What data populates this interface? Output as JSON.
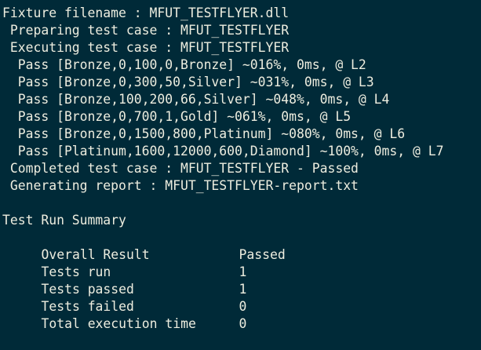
{
  "terminal": {
    "colors": {
      "background": "#002a38",
      "foreground": "#ededdf"
    },
    "log_lines": [
      "Fixture filename : MFUT_TESTFLYER.dll",
      " Preparing test case : MFUT_TESTFLYER",
      " Executing test case : MFUT_TESTFLYER",
      "  Pass [Bronze,0,100,0,Bronze] ~016%, 0ms, @ L2",
      "  Pass [Bronze,0,300,50,Silver] ~031%, 0ms, @ L3",
      "  Pass [Bronze,100,200,66,Silver] ~048%, 0ms, @ L4",
      "  Pass [Bronze,0,700,1,Gold] ~061%, 0ms, @ L5",
      "  Pass [Bronze,0,1500,800,Platinum] ~080%, 0ms, @ L6",
      "  Pass [Platinum,1600,12000,600,Diamond] ~100%, 0ms, @ L7",
      " Completed test case : MFUT_TESTFLYER - Passed",
      " Generating report : MFUT_TESTFLYER-report.txt"
    ],
    "summary": {
      "title": "Test Run Summary",
      "rows": [
        {
          "label": "Overall Result",
          "value": "Passed"
        },
        {
          "label": "Tests run",
          "value": "1"
        },
        {
          "label": "Tests passed",
          "value": "1"
        },
        {
          "label": "Tests failed",
          "value": "0"
        },
        {
          "label": "Total execution time",
          "value": "0"
        }
      ]
    }
  }
}
